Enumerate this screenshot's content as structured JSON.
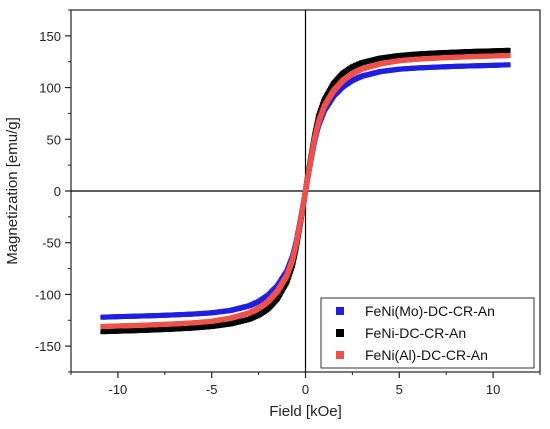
{
  "chart_data": {
    "type": "scatter",
    "xlabel": "Field [kOe]",
    "ylabel": "Magnetization [emu/g]",
    "xlim": [
      -12.5,
      12.5
    ],
    "ylim": [
      -175,
      175
    ],
    "xticks": [
      -10,
      -5,
      0,
      5,
      10
    ],
    "xtick_labels": [
      "-10",
      "-5",
      "0",
      "5",
      "10"
    ],
    "yticks": [
      -150,
      -100,
      -50,
      0,
      50,
      100,
      150
    ],
    "ytick_labels": [
      "-150",
      "-100",
      "-50",
      "0",
      "50",
      "100",
      "150"
    ],
    "legend_position": "bottom-right",
    "grid": false,
    "series": [
      {
        "name": "FeNi(Mo)-DC-CR-An",
        "color": "#1f1fe0",
        "x": [
          -10.8,
          -10,
          -9,
          -8,
          -7,
          -6,
          -5,
          -4,
          -3,
          -2.5,
          -2,
          -1.5,
          -1,
          -0.7,
          -0.5,
          -0.3,
          -0.1,
          0,
          0.1,
          0.3,
          0.5,
          0.7,
          1,
          1.5,
          2,
          2.5,
          3,
          4,
          5,
          6,
          7,
          8,
          9,
          10,
          10.8
        ],
        "y": [
          -122,
          -121.5,
          -121,
          -120.5,
          -119.8,
          -119,
          -117.8,
          -115.5,
          -111,
          -107,
          -101,
          -92,
          -78,
          -64,
          -50,
          -31,
          -11,
          0,
          11,
          31,
          50,
          64,
          78,
          92,
          101,
          107,
          111,
          115.5,
          117.8,
          119,
          119.8,
          120.5,
          121,
          121.5,
          122
        ]
      },
      {
        "name": "FeNi-DC-CR-An",
        "color": "#000000",
        "x": [
          -10.8,
          -10,
          -9,
          -8,
          -7,
          -6,
          -5,
          -4,
          -3,
          -2.5,
          -2,
          -1.5,
          -1,
          -0.7,
          -0.5,
          -0.3,
          -0.1,
          0,
          0.1,
          0.3,
          0.5,
          0.7,
          1,
          1.5,
          2,
          2.5,
          3,
          4,
          5,
          6,
          7,
          8,
          9,
          10,
          10.8
        ],
        "y": [
          -136,
          -135.5,
          -135,
          -134.3,
          -133.5,
          -132.5,
          -131,
          -128.5,
          -124,
          -120,
          -114,
          -104,
          -88,
          -72,
          -55,
          -34,
          -12,
          0,
          12,
          34,
          55,
          72,
          88,
          104,
          114,
          120,
          124,
          128.5,
          131,
          132.5,
          133.5,
          134.3,
          135,
          135.5,
          136
        ]
      },
      {
        "name": "FeNi(Al)-DC-CR-An",
        "color": "#f0504a",
        "x": [
          -10.8,
          -10,
          -9,
          -8,
          -7,
          -6,
          -5,
          -4,
          -3,
          -2.5,
          -2,
          -1.5,
          -1,
          -0.7,
          -0.5,
          -0.3,
          -0.1,
          0,
          0.1,
          0.3,
          0.5,
          0.7,
          1,
          1.5,
          2,
          2.5,
          3,
          4,
          5,
          6,
          7,
          8,
          9,
          10,
          10.8
        ],
        "y": [
          -131,
          -130.5,
          -130,
          -129.3,
          -128.5,
          -127.5,
          -126,
          -123,
          -118,
          -113.5,
          -107,
          -97,
          -82,
          -67,
          -52,
          -32,
          -11,
          0,
          11,
          32,
          52,
          67,
          82,
          97,
          107,
          113.5,
          118,
          123,
          126,
          127.5,
          128.5,
          129.3,
          130,
          130.5,
          131
        ]
      }
    ]
  }
}
